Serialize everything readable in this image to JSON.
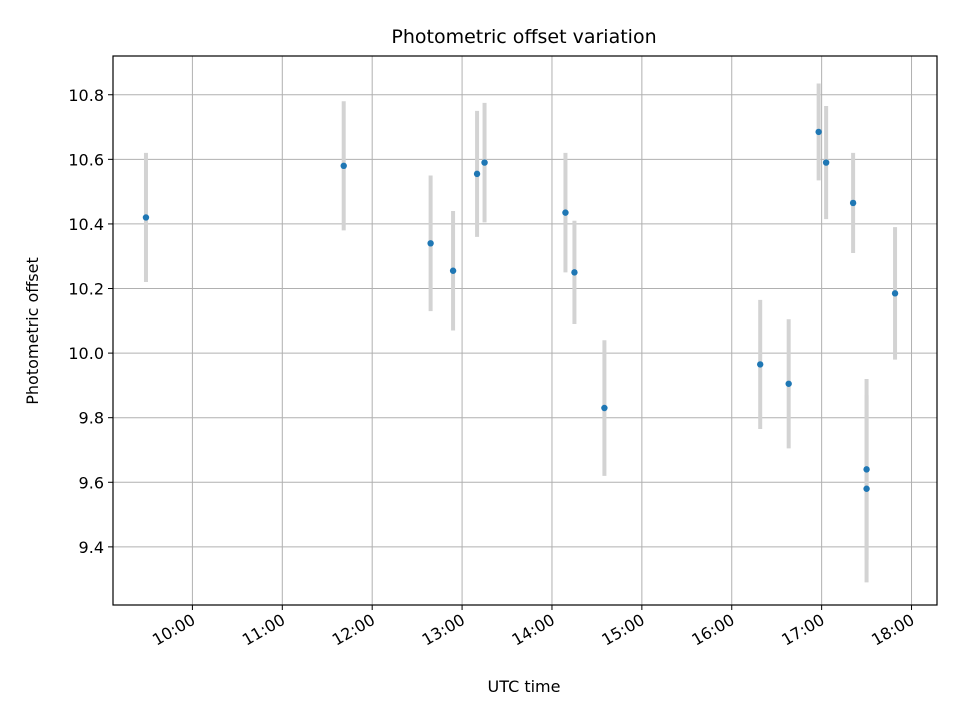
{
  "chart_data": {
    "type": "scatter",
    "title": "Photometric offset variation",
    "xlabel": "UTC time",
    "ylabel": "Photometric offset",
    "xlim": [
      "09:07",
      "18:17"
    ],
    "ylim": [
      9.22,
      10.92
    ],
    "grid": true,
    "x_ticks": [
      "10:00",
      "11:00",
      "12:00",
      "13:00",
      "14:00",
      "15:00",
      "16:00",
      "17:00",
      "18:00"
    ],
    "y_ticks": [
      "9.4",
      "9.6",
      "9.8",
      "10.0",
      "10.2",
      "10.4",
      "10.6",
      "10.8"
    ],
    "series": [
      {
        "marker_color": "#1f77b4",
        "errorbar_color": "#d3d3d3",
        "points": [
          {
            "x": "09:29",
            "y": 10.42,
            "err": 0.2
          },
          {
            "x": "11:41",
            "y": 10.58,
            "err": 0.2
          },
          {
            "x": "12:39",
            "y": 10.34,
            "err": 0.21
          },
          {
            "x": "12:54",
            "y": 10.255,
            "err": 0.185
          },
          {
            "x": "13:10",
            "y": 10.555,
            "err": 0.195
          },
          {
            "x": "13:15",
            "y": 10.59,
            "err": 0.185
          },
          {
            "x": "14:09",
            "y": 10.435,
            "err": 0.185
          },
          {
            "x": "14:15",
            "y": 10.25,
            "err": 0.16
          },
          {
            "x": "14:35",
            "y": 9.83,
            "err": 0.21
          },
          {
            "x": "16:19",
            "y": 9.965,
            "err": 0.2
          },
          {
            "x": "16:38",
            "y": 9.905,
            "err": 0.2
          },
          {
            "x": "16:58",
            "y": 10.685,
            "err": 0.15
          },
          {
            "x": "17:03",
            "y": 10.59,
            "err": 0.175
          },
          {
            "x": "17:21",
            "y": 10.465,
            "err": 0.155
          },
          {
            "x": "17:30",
            "y": 9.64,
            "err": 0.28
          },
          {
            "x": "17:30",
            "y": 9.58,
            "err": 0.29
          },
          {
            "x": "17:49",
            "y": 10.185,
            "err": 0.205
          }
        ]
      }
    ]
  }
}
